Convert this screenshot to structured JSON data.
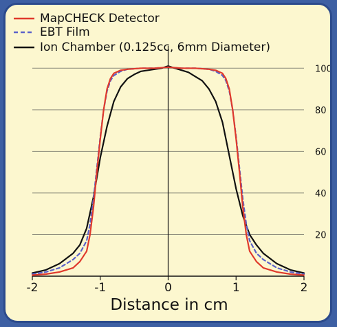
{
  "chart_data": {
    "type": "line",
    "title": "",
    "xlabel": "Distance in cm",
    "ylabel": "",
    "xlim": [
      -2,
      2
    ],
    "ylim": [
      0,
      110
    ],
    "x_ticks": [
      "-2",
      "-1",
      "0",
      "1",
      "2"
    ],
    "y_ticks": [
      "20",
      "40",
      "60",
      "80",
      "100"
    ],
    "grid": true,
    "legend_position": "top-left",
    "series": [
      {
        "name": "MapCHECK Detector",
        "color": "#e03a2c",
        "style": "solid",
        "x": [
          -2.0,
          -1.8,
          -1.6,
          -1.4,
          -1.3,
          -1.2,
          -1.15,
          -1.1,
          -1.05,
          -1.0,
          -0.95,
          -0.9,
          -0.85,
          -0.8,
          -0.7,
          -0.6,
          -0.4,
          -0.2,
          0.0,
          0.2,
          0.4,
          0.6,
          0.7,
          0.8,
          0.85,
          0.9,
          0.95,
          1.0,
          1.05,
          1.1,
          1.15,
          1.2,
          1.3,
          1.4,
          1.6,
          1.8,
          2.0
        ],
        "y": [
          0.5,
          1,
          2,
          4,
          7,
          12,
          20,
          33,
          50,
          66,
          80,
          90,
          95,
          97.5,
          99,
          99.5,
          100,
          100,
          100.5,
          100,
          100,
          99.5,
          99,
          97.5,
          95,
          90,
          80,
          66,
          50,
          33,
          20,
          12,
          7,
          4,
          2,
          1,
          0.5
        ]
      },
      {
        "name": "EBT Film",
        "color": "#5b62c9",
        "style": "dashed",
        "x": [
          -2.0,
          -1.8,
          -1.6,
          -1.4,
          -1.3,
          -1.2,
          -1.15,
          -1.1,
          -1.05,
          -1.0,
          -0.95,
          -0.9,
          -0.85,
          -0.8,
          -0.7,
          -0.6,
          -0.4,
          -0.2,
          0.0,
          0.2,
          0.4,
          0.6,
          0.7,
          0.8,
          0.85,
          0.9,
          0.95,
          1.0,
          1.05,
          1.1,
          1.15,
          1.2,
          1.3,
          1.4,
          1.6,
          1.8,
          2.0
        ],
        "y": [
          1,
          2,
          4,
          8,
          11,
          17,
          25,
          37,
          52,
          67,
          80,
          89,
          94,
          96.5,
          98.5,
          99.5,
          100,
          100,
          100.5,
          100,
          100,
          99.5,
          98.5,
          96.5,
          94,
          89,
          80,
          67,
          52,
          37,
          25,
          17,
          11,
          8,
          4,
          2,
          1
        ]
      },
      {
        "name": "Ion Chamber (0.125cc, 6mm Diameter)",
        "color": "#111111",
        "style": "solid",
        "x": [
          -2.0,
          -1.8,
          -1.6,
          -1.4,
          -1.3,
          -1.2,
          -1.1,
          -1.0,
          -0.9,
          -0.8,
          -0.7,
          -0.6,
          -0.5,
          -0.4,
          -0.3,
          -0.2,
          -0.1,
          0.0,
          0.1,
          0.2,
          0.3,
          0.4,
          0.5,
          0.6,
          0.7,
          0.8,
          0.9,
          1.0,
          1.1,
          1.2,
          1.3,
          1.4,
          1.6,
          1.8,
          2.0
        ],
        "y": [
          1.5,
          3,
          6,
          11,
          15,
          23,
          38,
          57,
          72,
          84,
          91,
          95,
          97,
          98.5,
          99,
          99.5,
          100,
          101,
          100,
          99,
          98,
          96,
          94,
          90,
          84,
          74,
          58,
          42,
          29,
          20,
          15,
          11,
          6,
          3,
          1.5
        ]
      }
    ]
  }
}
